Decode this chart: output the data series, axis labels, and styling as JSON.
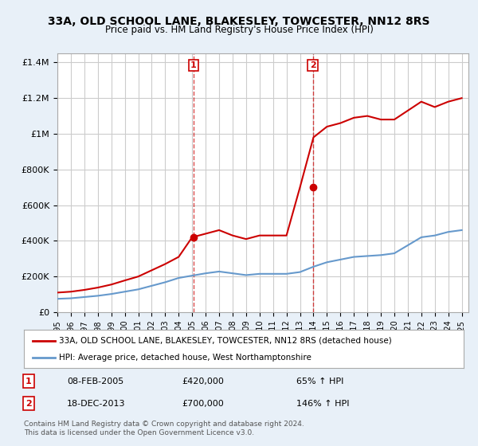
{
  "title": "33A, OLD SCHOOL LANE, BLAKESLEY, TOWCESTER, NN12 8RS",
  "subtitle": "Price paid vs. HM Land Registry's House Price Index (HPI)",
  "ylabel_ticks": [
    "£0",
    "£200K",
    "£400K",
    "£600K",
    "£800K",
    "£1M",
    "£1.2M",
    "£1.4M"
  ],
  "ytick_values": [
    0,
    200000,
    400000,
    600000,
    800000,
    1000000,
    1200000,
    1400000
  ],
  "ylim": [
    0,
    1450000
  ],
  "xlim_start": 1995.0,
  "xlim_end": 2025.5,
  "transaction1": {
    "date_x": 2005.1,
    "price": 420000,
    "label": "1"
  },
  "transaction2": {
    "date_x": 2013.95,
    "price": 700000,
    "label": "2"
  },
  "legend_red_label": "33A, OLD SCHOOL LANE, BLAKESLEY, TOWCESTER, NN12 8RS (detached house)",
  "legend_blue_label": "HPI: Average price, detached house, West Northamptonshire",
  "note1_label": "1",
  "note1_date": "08-FEB-2005",
  "note1_price": "£420,000",
  "note1_hpi": "65% ↑ HPI",
  "note2_label": "2",
  "note2_date": "18-DEC-2013",
  "note2_price": "£700,000",
  "note2_hpi": "146% ↑ HPI",
  "copyright": "Contains HM Land Registry data © Crown copyright and database right 2024.\nThis data is licensed under the Open Government Licence v3.0.",
  "red_color": "#cc0000",
  "blue_color": "#6699cc",
  "dashed_color": "#cc0000",
  "bg_color": "#e8f0f8",
  "plot_bg": "#ffffff",
  "grid_color": "#cccccc",
  "hpi_years": [
    1995,
    1996,
    1997,
    1998,
    1999,
    2000,
    2001,
    2002,
    2003,
    2004,
    2005,
    2006,
    2007,
    2008,
    2009,
    2010,
    2011,
    2012,
    2013,
    2014,
    2015,
    2016,
    2017,
    2018,
    2019,
    2020,
    2021,
    2022,
    2023,
    2024,
    2025
  ],
  "hpi_values": [
    75000,
    78000,
    85000,
    92000,
    102000,
    115000,
    128000,
    148000,
    168000,
    192000,
    205000,
    218000,
    228000,
    218000,
    208000,
    215000,
    215000,
    215000,
    225000,
    255000,
    280000,
    295000,
    310000,
    315000,
    320000,
    330000,
    375000,
    420000,
    430000,
    450000,
    460000
  ],
  "red_years": [
    1995,
    1996,
    1997,
    1998,
    1999,
    2000,
    2001,
    2002,
    2003,
    2004,
    2005,
    2006,
    2007,
    2008,
    2009,
    2010,
    2011,
    2012,
    2013,
    2014,
    2015,
    2016,
    2017,
    2018,
    2019,
    2020,
    2021,
    2022,
    2023,
    2024,
    2025
  ],
  "red_values": [
    110000,
    115000,
    125000,
    138000,
    155000,
    178000,
    200000,
    235000,
    270000,
    310000,
    420000,
    440000,
    460000,
    430000,
    410000,
    430000,
    430000,
    430000,
    700000,
    980000,
    1040000,
    1060000,
    1090000,
    1100000,
    1080000,
    1080000,
    1130000,
    1180000,
    1150000,
    1180000,
    1200000
  ]
}
